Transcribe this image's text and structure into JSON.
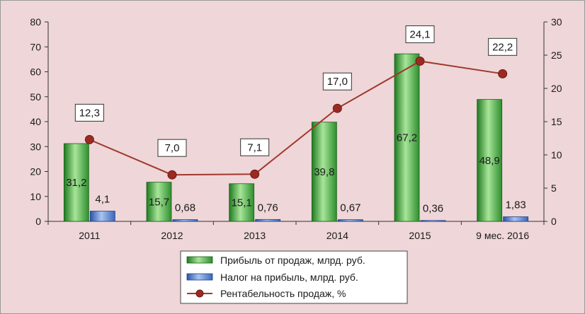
{
  "chart_data": {
    "type": "bar",
    "categories": [
      "2011",
      "2012",
      "2013",
      "2014",
      "2015",
      "9 мес. 2016"
    ],
    "series": [
      {
        "name": "Прибыль от продаж, млрд. руб.",
        "kind": "bar",
        "axis": "left",
        "values": [
          31.2,
          15.7,
          15.1,
          39.8,
          67.2,
          48.9
        ],
        "labels": [
          "31,2",
          "15,7",
          "15,1",
          "39,8",
          "67,2",
          "48,9"
        ],
        "color": "#3aa33a"
      },
      {
        "name": "Налог на прибыль, млрд. руб.",
        "kind": "bar",
        "axis": "left",
        "values": [
          4.1,
          0.68,
          0.76,
          0.67,
          0.36,
          1.83
        ],
        "labels": [
          "4,1",
          "0,68",
          "0,76",
          "0,67",
          "0,36",
          "1,83"
        ],
        "color": "#4a78c8"
      },
      {
        "name": "Рентабельность продаж, %",
        "kind": "line",
        "axis": "right",
        "values": [
          12.3,
          7.0,
          7.1,
          17.0,
          24.1,
          22.2
        ],
        "labels": [
          "12,3",
          "7,0",
          "7,1",
          "17,0",
          "24,1",
          "22,2"
        ],
        "color": "#a0382e"
      }
    ],
    "y_left": {
      "min": 0,
      "max": 80,
      "step": 10,
      "ticks": [
        "0",
        "10",
        "20",
        "30",
        "40",
        "50",
        "60",
        "70",
        "80"
      ]
    },
    "y_right": {
      "min": 0,
      "max": 30,
      "step": 5,
      "ticks": [
        "0",
        "5",
        "10",
        "15",
        "20",
        "25",
        "30"
      ]
    },
    "grid": false,
    "legend_position": "bottom-center",
    "background": "#efd6d8"
  }
}
